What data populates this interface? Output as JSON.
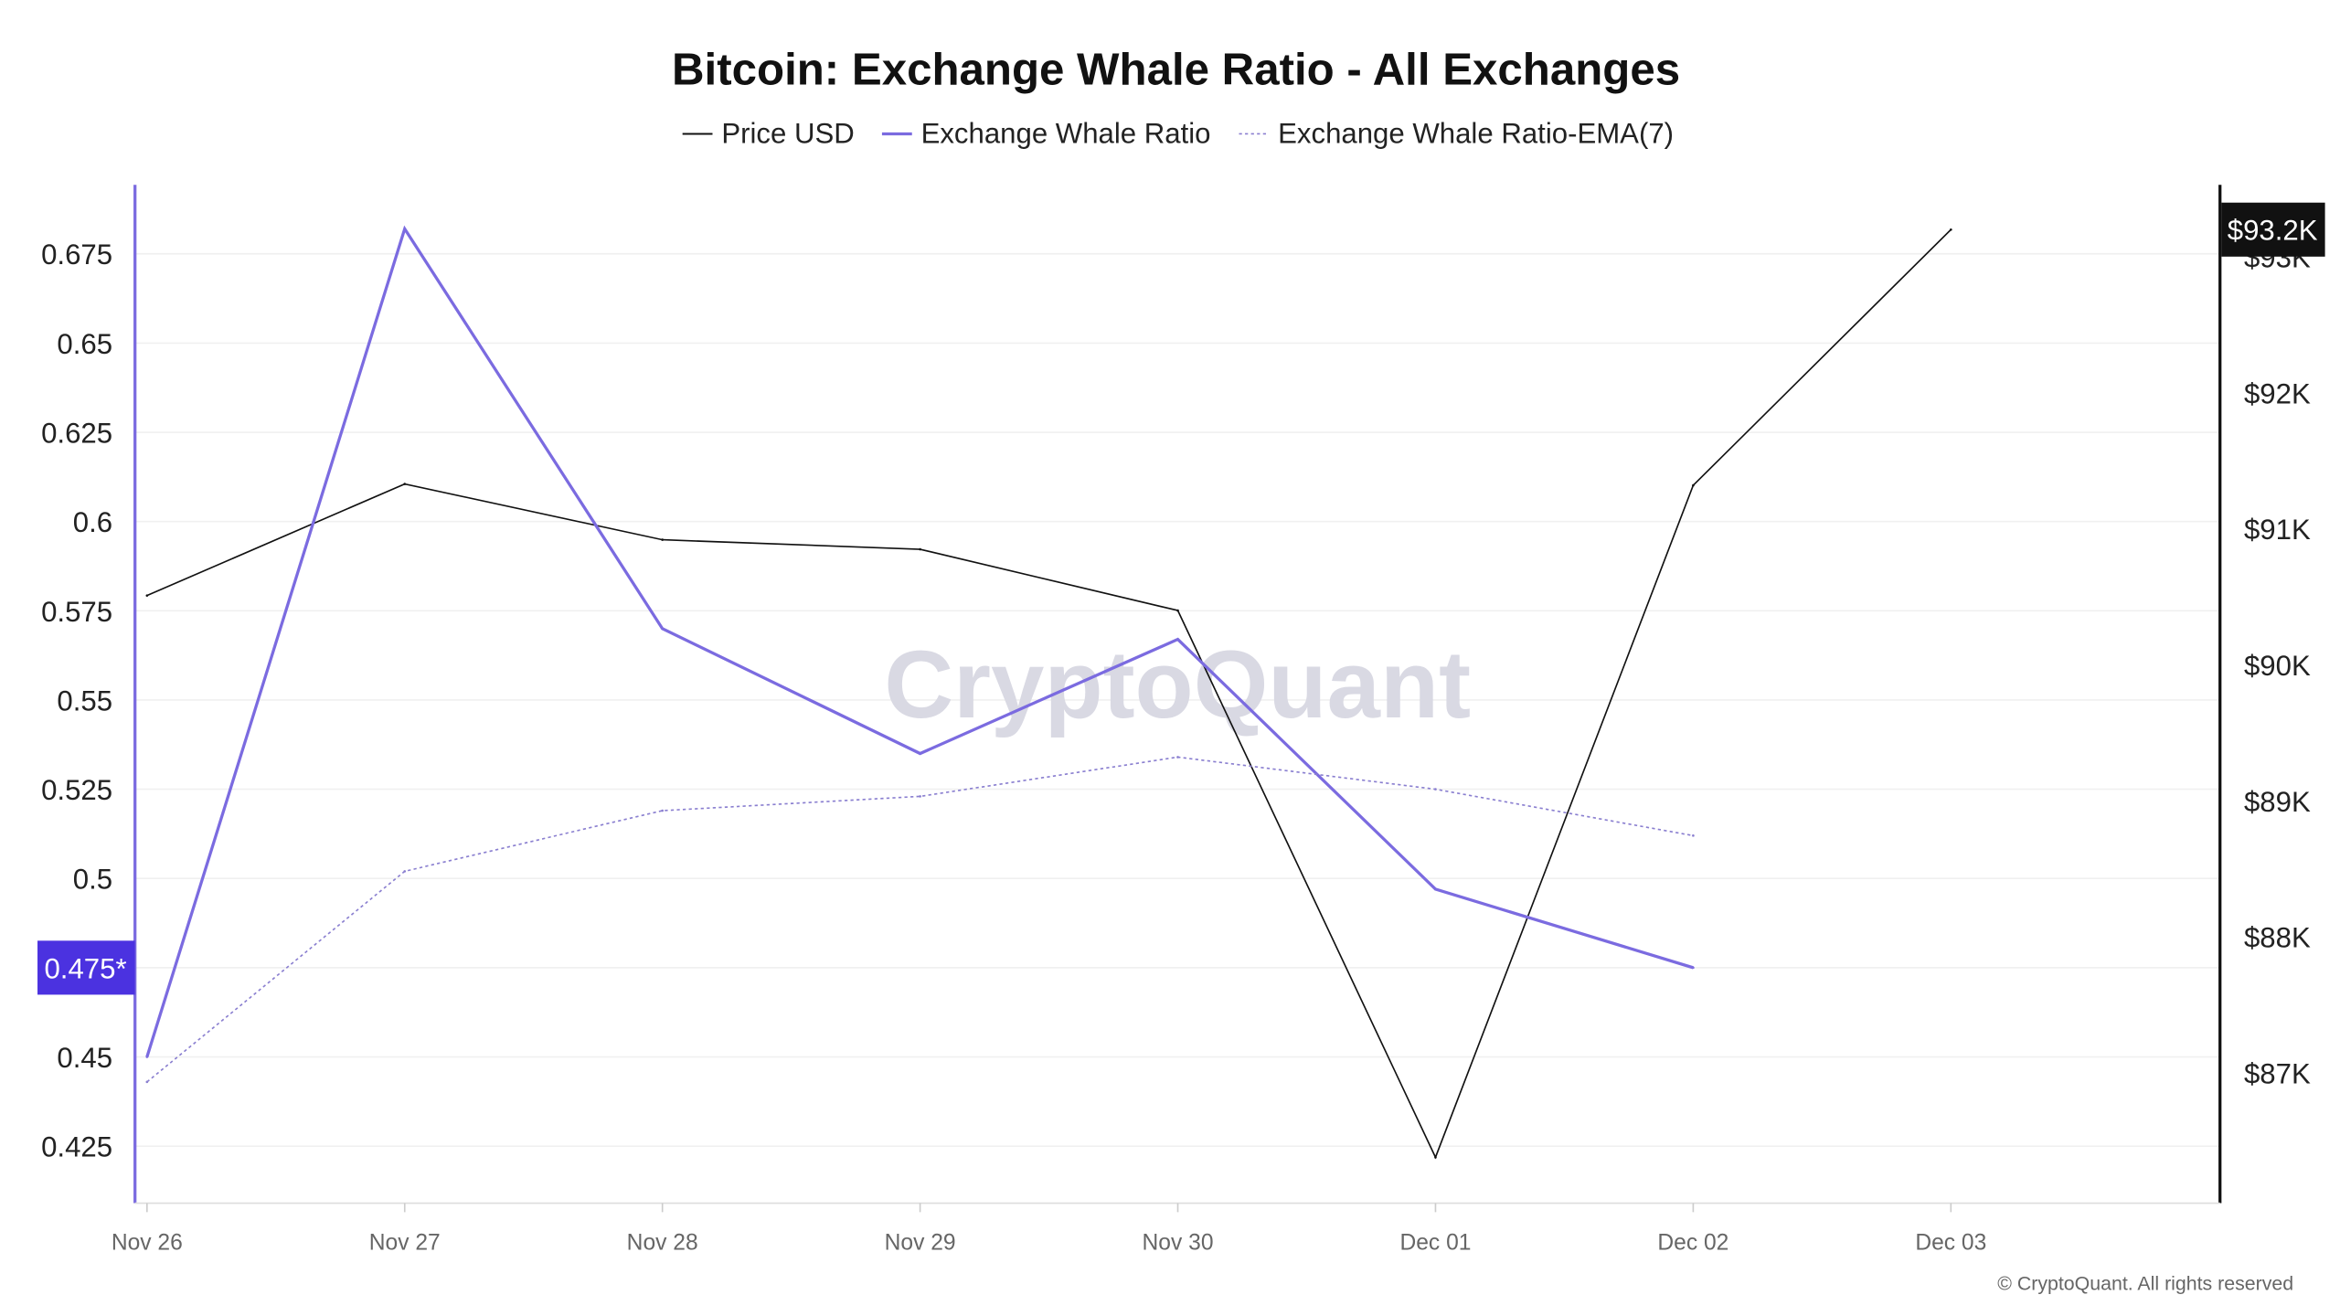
{
  "chart_data": {
    "type": "line",
    "title": "Bitcoin: Exchange Whale Ratio - All Exchanges",
    "categories": [
      "Nov 26",
      "Nov 27",
      "Nov 28",
      "Nov 29",
      "Nov 30",
      "Dec 01",
      "Dec 02",
      "Dec 03"
    ],
    "left_axis": {
      "ticks": [
        "0.675",
        "0.65",
        "0.625",
        "0.6",
        "0.575",
        "0.55",
        "0.525",
        "0.5",
        "0.45",
        "0.425"
      ],
      "tick_values": [
        0.675,
        0.65,
        0.625,
        0.6,
        0.575,
        0.55,
        0.525,
        0.5,
        0.45,
        0.425
      ],
      "ylim": [
        0.41,
        0.697
      ]
    },
    "right_axis": {
      "ticks": [
        "$93K",
        "$92K",
        "$91K",
        "$90K",
        "$89K",
        "$88K",
        "$87K"
      ],
      "tick_values": [
        93,
        92,
        91,
        90,
        89,
        88,
        87
      ],
      "ylim": [
        86.0,
        93.55
      ],
      "unit": "K USD"
    },
    "series": [
      {
        "name": "Price USD",
        "axis": "right",
        "color": "#111111",
        "style": "solid",
        "values": [
          90.51,
          91.33,
          90.92,
          90.85,
          90.4,
          86.38,
          91.32,
          93.2
        ]
      },
      {
        "name": "Exchange Whale Ratio",
        "axis": "left",
        "color": "#7b6be0",
        "style": "solid",
        "values": [
          0.45,
          0.682,
          0.57,
          0.535,
          0.567,
          0.497,
          0.475,
          null
        ]
      },
      {
        "name": "Exchange Whale Ratio-EMA(7)",
        "axis": "left",
        "color": "#8a7fd0",
        "style": "dotted",
        "values": [
          0.443,
          0.502,
          0.519,
          0.523,
          0.534,
          0.525,
          0.512,
          null
        ]
      }
    ],
    "current_labels": {
      "left": "0.475*",
      "right": "$93.2K"
    },
    "left_label_color": "#4b32e0",
    "right_label_color": "#111111",
    "grid": true,
    "legend_position": "top-center",
    "watermark": "CryptoQuant",
    "credit": "© CryptoQuant. All rights reserved"
  }
}
